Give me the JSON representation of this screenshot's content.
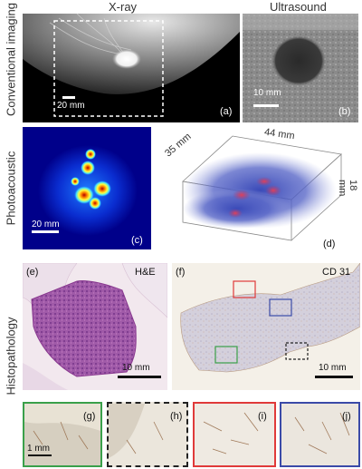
{
  "columns": {
    "xray": "X-ray",
    "ultrasound": "Ultrasound"
  },
  "rows": {
    "conventional": "Conventional imaging",
    "photoacoustic": "Photoacoustic",
    "histopathology": "Histopathology"
  },
  "panels": {
    "a": {
      "label": "(a)",
      "scale": "20 mm"
    },
    "b": {
      "label": "(b)",
      "scale": "10 mm"
    },
    "c": {
      "label": "(c)",
      "scale": "20 mm"
    },
    "d": {
      "label": "(d)",
      "dim_depth": "35 mm",
      "dim_width": "44 mm",
      "dim_height": "18 mm"
    },
    "e": {
      "label": "(e)",
      "stain": "H&E",
      "scale": "10 mm"
    },
    "f": {
      "label": "(f)",
      "stain": "CD 31",
      "scale": "10 mm"
    },
    "g": {
      "label": "(g)",
      "scale": "1 mm"
    },
    "h": {
      "label": "(h)"
    },
    "i": {
      "label": "(i)"
    },
    "j": {
      "label": "(j)"
    }
  },
  "colors": {
    "green": "#3aa04a",
    "red": "#e03a3a",
    "blue": "#3a4aa8",
    "dark": "#222222"
  }
}
